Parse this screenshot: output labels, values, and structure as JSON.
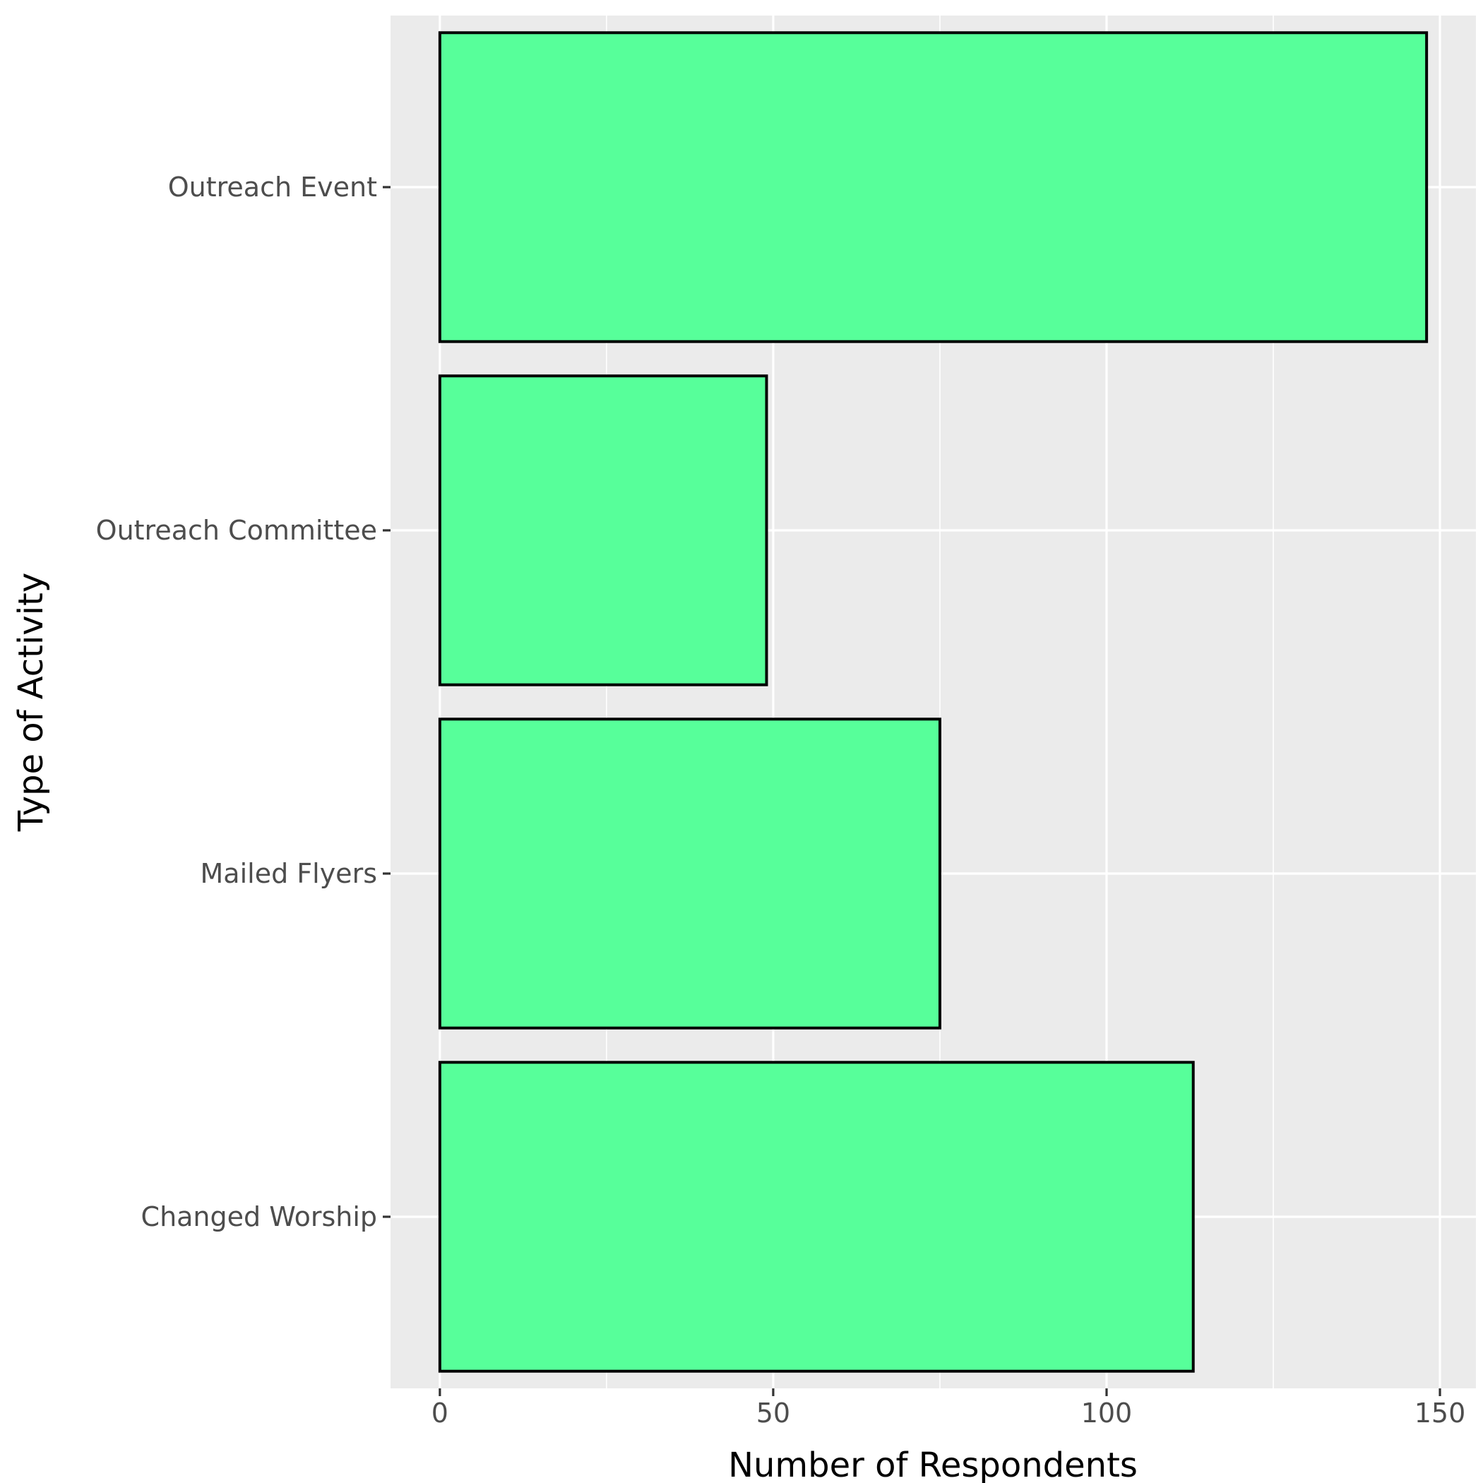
{
  "chart_data": {
    "type": "bar",
    "orientation": "horizontal",
    "categories": [
      "Outreach Event",
      "Outreach Committee",
      "Mailed Flyers",
      "Changed Worship"
    ],
    "values": [
      148,
      49,
      75,
      113
    ],
    "xlabel": "Number of Respondents",
    "ylabel": "Type of Activity",
    "xlim": [
      -7.4,
      155.4
    ],
    "x_ticks": [
      0,
      50,
      100,
      150
    ],
    "x_tick_labels": [
      "0",
      "50",
      "100",
      "150"
    ],
    "grid": true,
    "legend": "none",
    "colors": {
      "bar_fill": "#57FF9A",
      "bar_stroke": "#000000",
      "panel_background": "#EBEBEB",
      "grid": "#FFFFFF",
      "tick_label": "#4D4D4D",
      "axis_title": "#000000"
    }
  }
}
